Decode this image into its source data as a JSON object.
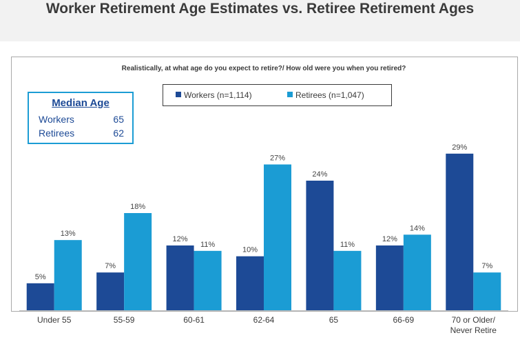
{
  "page": {
    "title": "Worker Retirement Age Estimates vs. Retiree Retirement Ages"
  },
  "median": {
    "title": "Median Age",
    "rows": [
      {
        "label": "Workers",
        "value": "65"
      },
      {
        "label": "Retirees",
        "value": "62"
      }
    ]
  },
  "chart_data": {
    "type": "bar",
    "title": "Realistically, at what age do you expect to retire?/ How old were you when you retired?",
    "categories": [
      "Under 55",
      "55-59",
      "60-61",
      "62-64",
      "65",
      "66-69",
      "70 or Older/ Never Retire"
    ],
    "series": [
      {
        "name": "Workers (n=1,114)",
        "color": "#1d4a96",
        "values": [
          5,
          7,
          12,
          10,
          24,
          12,
          29
        ]
      },
      {
        "name": "Retirees (n=1,047)",
        "color": "#1b9cd4",
        "values": [
          13,
          18,
          11,
          27,
          11,
          14,
          7
        ]
      }
    ],
    "value_suffix": "%",
    "ylim": [
      0,
      30
    ],
    "grid": false,
    "legend_position": "top-center"
  }
}
